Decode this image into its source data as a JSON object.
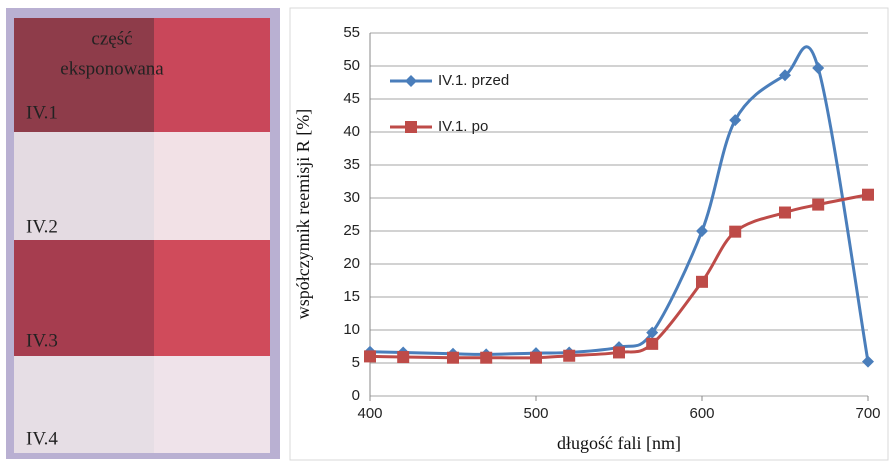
{
  "photo": {
    "caption": [
      "część",
      "eksponowana"
    ],
    "samples": [
      "IV.1",
      "IV.2",
      "IV.3",
      "IV.4"
    ]
  },
  "chart_data": {
    "type": "line",
    "x_label": "długość fali [nm]",
    "y_label": "współczynnik reemisji R [%]",
    "x": [
      400,
      420,
      450,
      470,
      500,
      520,
      550,
      570,
      600,
      620,
      650,
      670,
      700
    ],
    "series": [
      {
        "name": "IV.1. przed",
        "color": "#4a7ebb",
        "marker": "diamond",
        "values": [
          6.7,
          6.6,
          6.4,
          6.3,
          6.5,
          6.6,
          7.4,
          9.6,
          25,
          41.8,
          48.6,
          49.7,
          5.2
        ]
      },
      {
        "name": "IV.1. po",
        "color": "#be4b48",
        "marker": "square",
        "values": [
          6,
          5.9,
          5.8,
          5.8,
          5.8,
          6.1,
          6.6,
          7.9,
          17.3,
          24.9,
          27.8,
          29,
          30.5
        ]
      }
    ],
    "xlim": [
      400,
      700
    ],
    "xticks": [
      400,
      500,
      600,
      700
    ],
    "ylim": [
      0,
      55
    ],
    "yticks": [
      0,
      5,
      10,
      15,
      20,
      25,
      30,
      35,
      40,
      45,
      50,
      55
    ],
    "grid": true,
    "legend": "upper left",
    "smooth": true
  }
}
